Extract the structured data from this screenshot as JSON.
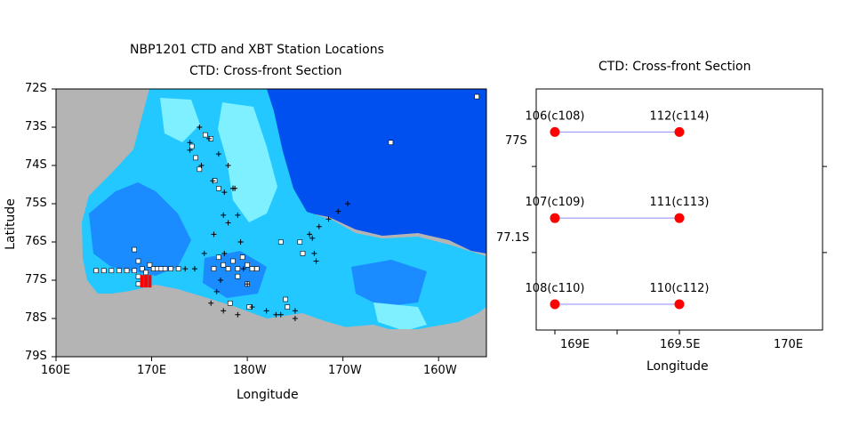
{
  "map_panel": {
    "title_line1": "NBP1201 CTD and XBT Station Locations",
    "title_line2": "CTD: Cross-front Section",
    "xlabel": "Longitude",
    "ylabel": "Latitude",
    "x_ticks": [
      "160E",
      "170E",
      "180W",
      "170W",
      "160W"
    ],
    "y_ticks": [
      "72S",
      "73S",
      "74S",
      "75S",
      "76S",
      "77S",
      "78S",
      "79S"
    ],
    "colors": {
      "land": "#b4b4b4",
      "deep_ocean": "#0050f0",
      "mid_ocean": "#1a8cff",
      "shelf": "#28d2ff",
      "shallow": "#7ef0ff",
      "section_highlight": "#ff0000"
    }
  },
  "chart_data": [
    {
      "type": "scatter",
      "title": "NBP1201 CTD and XBT Station Locations",
      "subtitle": "CTD: Cross-front Section",
      "xlabel": "Longitude",
      "ylabel": "Latitude",
      "xlim": [
        160,
        205
      ],
      "ylim": [
        -79,
        -72
      ],
      "series": [
        {
          "marker": "square",
          "points": [
            [
              164.2,
              -76.75
            ],
            [
              165.0,
              -76.75
            ],
            [
              165.8,
              -76.75
            ],
            [
              166.6,
              -76.75
            ],
            [
              167.4,
              -76.75
            ],
            [
              168.2,
              -76.75
            ],
            [
              168.2,
              -76.2
            ],
            [
              168.6,
              -76.5
            ],
            [
              168.6,
              -76.9
            ],
            [
              168.6,
              -77.1
            ],
            [
              169.0,
              -76.7
            ],
            [
              169.4,
              -76.8
            ],
            [
              169.8,
              -76.6
            ],
            [
              170.2,
              -76.7
            ],
            [
              170.6,
              -76.7
            ],
            [
              171.0,
              -76.7
            ],
            [
              171.4,
              -76.7
            ],
            [
              172.0,
              -76.7
            ],
            [
              172.8,
              -76.7
            ],
            [
              177.0,
              -76.4
            ],
            [
              177.5,
              -76.6
            ],
            [
              178.0,
              -76.7
            ],
            [
              178.5,
              -76.5
            ],
            [
              179.0,
              -76.7
            ],
            [
              179.5,
              -76.4
            ],
            [
              180.0,
              -76.6
            ],
            [
              180.5,
              -76.7
            ],
            [
              181.0,
              -76.7
            ],
            [
              179.0,
              -76.9
            ],
            [
              180.0,
              -77.1
            ],
            [
              176.5,
              -76.7
            ],
            [
              184.0,
              -77.5
            ],
            [
              184.2,
              -77.7
            ],
            [
              185.5,
              -76.0
            ],
            [
              185.8,
              -76.3
            ],
            [
              174.2,
              -73.5
            ],
            [
              174.6,
              -73.8
            ],
            [
              175.0,
              -74.1
            ],
            [
              175.6,
              -73.2
            ],
            [
              176.2,
              -73.3
            ],
            [
              176.6,
              -74.4
            ],
            [
              177.0,
              -74.6
            ],
            [
              183.5,
              -76.0
            ],
            [
              195.0,
              -73.4
            ],
            [
              204.0,
              -72.2
            ],
            [
              178.2,
              -77.6
            ],
            [
              180.2,
              -77.7
            ]
          ]
        },
        {
          "marker": "plus",
          "points": [
            [
              174.0,
              -73.4
            ],
            [
              175.0,
              -73.0
            ],
            [
              176.0,
              -73.3
            ],
            [
              177.0,
              -73.7
            ],
            [
              178.0,
              -74.0
            ],
            [
              174.0,
              -73.6
            ],
            [
              175.2,
              -74.0
            ],
            [
              176.4,
              -74.4
            ],
            [
              177.6,
              -74.7
            ],
            [
              178.5,
              -74.6
            ],
            [
              177.5,
              -75.3
            ],
            [
              176.5,
              -75.8
            ],
            [
              175.5,
              -76.3
            ],
            [
              174.5,
              -76.7
            ],
            [
              173.5,
              -76.7
            ],
            [
              178.7,
              -74.6
            ],
            [
              179.0,
              -75.3
            ],
            [
              179.3,
              -76.0
            ],
            [
              179.6,
              -76.7
            ],
            [
              180.0,
              -77.1
            ],
            [
              178.5,
              -74.6
            ],
            [
              178.0,
              -75.5
            ],
            [
              177.6,
              -76.3
            ],
            [
              177.2,
              -77.0
            ],
            [
              176.2,
              -77.6
            ],
            [
              176.8,
              -77.3
            ],
            [
              177.5,
              -77.8
            ],
            [
              179.0,
              -77.9
            ],
            [
              180.5,
              -77.7
            ],
            [
              182.0,
              -77.8
            ],
            [
              183.5,
              -77.9
            ],
            [
              185.0,
              -78.0
            ],
            [
              186.5,
              -75.8
            ],
            [
              187.5,
              -75.6
            ],
            [
              188.5,
              -75.4
            ],
            [
              189.5,
              -75.2
            ],
            [
              190.5,
              -75.0
            ],
            [
              186.8,
              -75.9
            ],
            [
              187.0,
              -76.3
            ],
            [
              187.2,
              -76.5
            ],
            [
              185.0,
              -77.8
            ],
            [
              183.0,
              -77.9
            ]
          ]
        },
        {
          "marker": "bar",
          "color": "#ff0000",
          "points": [
            [
              169.0,
              -77.05
            ],
            [
              169.4,
              -77.05
            ],
            [
              169.8,
              -77.05
            ]
          ]
        }
      ]
    },
    {
      "type": "scatter",
      "title": "CTD: Cross-front Section",
      "xlabel": "Longitude",
      "xlim": [
        168.85,
        171.15
      ],
      "ylim": [
        -77.19,
        -76.91
      ],
      "x_ticks": [
        "169E",
        "169.5E",
        "170E"
      ],
      "y_ticks": [
        "77S",
        "77.1S"
      ],
      "series": [
        {
          "marker": "circle",
          "color": "#ff0000",
          "line_color": "#8c8cff",
          "points": [
            {
              "x": 169.0,
              "y": -76.96,
              "label": "106(c108)"
            },
            {
              "x": 170.0,
              "y": -76.96,
              "label": "112(c114)"
            },
            {
              "x": 169.0,
              "y": -77.06,
              "label": "107(c109)"
            },
            {
              "x": 170.0,
              "y": -77.06,
              "label": "111(c113)"
            },
            {
              "x": 169.0,
              "y": -77.16,
              "label": "108(c110)"
            },
            {
              "x": 170.0,
              "y": -77.16,
              "label": "110(c112)"
            }
          ]
        }
      ]
    }
  ]
}
